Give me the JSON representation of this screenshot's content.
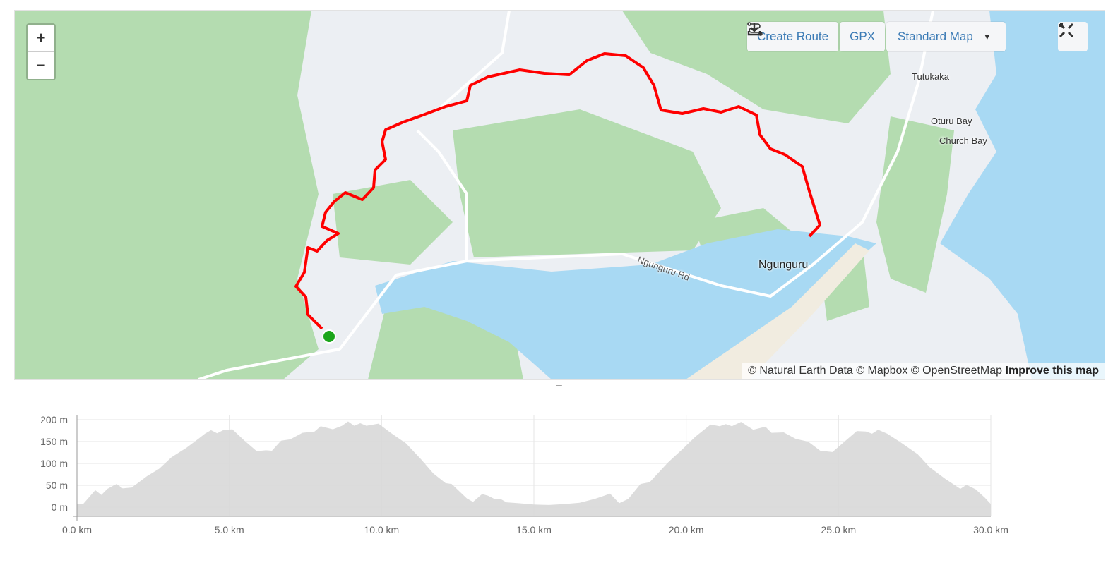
{
  "map": {
    "zoom_in": "+",
    "zoom_out": "−",
    "toolbar": {
      "create_route": "Create Route",
      "gpx": "GPX",
      "map_style": "Standard Map"
    },
    "labels": {
      "tutukaka": "Tutukaka",
      "oturu_bay": "Oturu Bay",
      "church_bay": "Church Bay",
      "ngunguru": "Ngunguru",
      "ngunguru_rd": "Ngunguru Rd"
    },
    "attribution": {
      "text": "© Natural Earth Data © Mapbox © OpenStreetMap",
      "improve": "Improve this map"
    },
    "colors": {
      "route": "#ff0000",
      "start_marker": "#1aa51a",
      "water": "#a8d9f3",
      "forest": "#b4dcb0",
      "land": "#eceff3"
    }
  },
  "splitter_glyph": "═",
  "chart_data": {
    "type": "area",
    "xlabel": "",
    "ylabel": "",
    "xlim": [
      0,
      30
    ],
    "ylim": [
      -20,
      210
    ],
    "x_ticks": [
      "0.0 km",
      "5.0 km",
      "10.0 km",
      "15.0 km",
      "20.0 km",
      "25.0 km",
      "30.0 km"
    ],
    "y_ticks": [
      "0 m",
      "50 m",
      "100 m",
      "150 m",
      "200 m"
    ],
    "grid": true,
    "fill_color": "#d8d8d8",
    "x": [
      0,
      0.2,
      0.6,
      0.8,
      1.0,
      1.3,
      1.5,
      1.8,
      2.3,
      2.7,
      3.1,
      3.6,
      4.0,
      4.2,
      4.4,
      4.6,
      4.8,
      5.1,
      5.5,
      5.9,
      6.2,
      6.4,
      6.7,
      7.0,
      7.4,
      7.8,
      8.0,
      8.4,
      8.7,
      8.9,
      9.1,
      9.3,
      9.5,
      9.9,
      10.3,
      10.8,
      11.3,
      11.7,
      12.1,
      12.3,
      12.8,
      13.0,
      13.3,
      13.5,
      13.7,
      13.9,
      14.1,
      14.5,
      15.0,
      15.5,
      16.0,
      16.5,
      17.0,
      17.3,
      17.5,
      17.8,
      18.1,
      18.5,
      18.8,
      19.4,
      19.9,
      20.3,
      20.8,
      21.1,
      21.3,
      21.5,
      21.8,
      22.2,
      22.6,
      22.8,
      23.2,
      23.6,
      24.0,
      24.4,
      24.8,
      25.3,
      25.6,
      25.9,
      26.1,
      26.3,
      26.6,
      27.0,
      27.6,
      28.0,
      28.5,
      29.0,
      29.2,
      29.5,
      29.8,
      30.0
    ],
    "y": [
      7,
      7,
      39,
      28,
      42,
      53,
      43,
      45,
      71,
      88,
      114,
      136,
      157,
      168,
      176,
      169,
      176,
      178,
      152,
      128,
      130,
      129,
      152,
      155,
      170,
      173,
      185,
      178,
      186,
      196,
      186,
      192,
      186,
      191,
      170,
      146,
      109,
      77,
      55,
      53,
      20,
      12,
      30,
      26,
      19,
      19,
      11,
      9,
      6,
      5,
      7,
      10,
      19,
      26,
      31,
      9,
      19,
      53,
      57,
      102,
      134,
      161,
      189,
      185,
      190,
      185,
      195,
      177,
      184,
      170,
      171,
      156,
      150,
      129,
      126,
      156,
      174,
      173,
      168,
      177,
      168,
      150,
      121,
      91,
      65,
      42,
      51,
      41,
      22,
      7
    ]
  }
}
